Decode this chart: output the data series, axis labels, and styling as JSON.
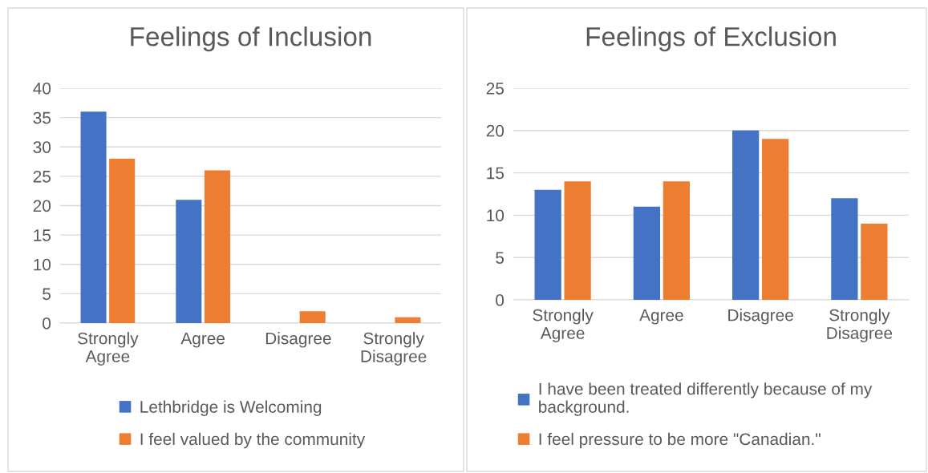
{
  "chart_data": [
    {
      "type": "bar",
      "title": "Feelings of Inclusion",
      "categories": [
        "Strongly\nAgree",
        "Agree",
        "Disagree",
        "Strongly\nDisagree"
      ],
      "series": [
        {
          "name": "Lethbridge is Welcoming",
          "color": "#4472c4",
          "values": [
            36,
            21,
            0,
            0
          ]
        },
        {
          "name": "I feel valued by the community",
          "color": "#ed7d31",
          "values": [
            28,
            26,
            2,
            1
          ]
        }
      ],
      "ylim": [
        0,
        40
      ],
      "yticks": [
        0,
        5,
        10,
        15,
        20,
        25,
        30,
        35,
        40
      ],
      "grid": "y",
      "legend": "bottom"
    },
    {
      "type": "bar",
      "title": "Feelings of Exclusion",
      "categories": [
        "Strongly\nAgree",
        "Agree",
        "Disagree",
        "Strongly\nDisagree"
      ],
      "series": [
        {
          "name": "I have been treated differently because of my\nbackground.",
          "color": "#4472c4",
          "values": [
            13,
            11,
            20,
            12
          ]
        },
        {
          "name": "I feel pressure to be more \"Canadian.\"",
          "color": "#ed7d31",
          "values": [
            14,
            14,
            19,
            9
          ]
        }
      ],
      "ylim": [
        0,
        25
      ],
      "yticks": [
        0,
        5,
        10,
        15,
        20,
        25
      ],
      "grid": "y",
      "legend": "bottom"
    }
  ]
}
